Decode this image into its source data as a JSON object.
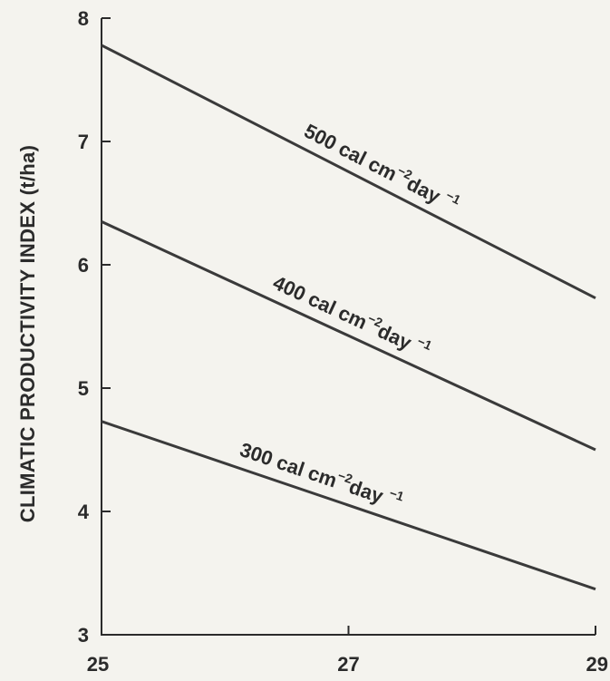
{
  "chart_data": {
    "type": "line",
    "title": "",
    "xlabel": "",
    "ylabel": "CLIMATIC PRODUCTIVITY INDEX (t/ha)",
    "xlim": [
      25,
      29
    ],
    "ylim": [
      3,
      8
    ],
    "xticks": [
      25,
      27,
      29
    ],
    "yticks": [
      3,
      4,
      5,
      6,
      7,
      8
    ],
    "grid": false,
    "legend": "none",
    "series": [
      {
        "name": "500 cal cm-2 day-1",
        "label_parts": {
          "value": "500 cal",
          "unit": "cm",
          "exp1": "−2",
          "per": "day",
          "exp2": "−1"
        },
        "x": [
          25,
          29
        ],
        "y": [
          7.78,
          5.73
        ]
      },
      {
        "name": "400 cal cm-2 day-1",
        "label_parts": {
          "value": "400 cal",
          "unit": "cm",
          "exp1": "−2",
          "per": "day",
          "exp2": "−1"
        },
        "x": [
          25,
          29
        ],
        "y": [
          6.35,
          4.5
        ]
      },
      {
        "name": "300 cal cm-2 day-1",
        "label_parts": {
          "value": "300 cal",
          "unit": "cm",
          "exp1": "−2",
          "per": "day",
          "exp2": "−1"
        },
        "x": [
          25,
          29
        ],
        "y": [
          4.73,
          3.37
        ]
      }
    ],
    "colors": {
      "line": "#3a3a3a",
      "text": "#2b2b2b",
      "background": "#f4f3ee"
    }
  }
}
